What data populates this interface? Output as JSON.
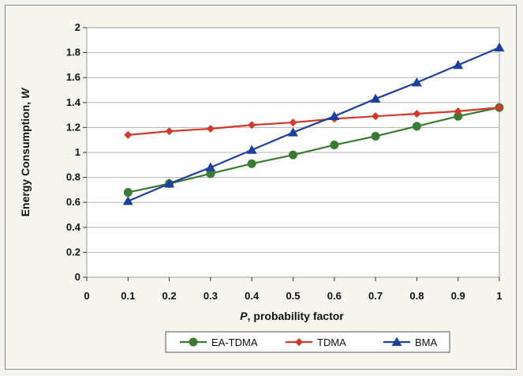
{
  "chart_data": {
    "type": "line",
    "x": [
      0.1,
      0.2,
      0.3,
      0.4,
      0.5,
      0.6,
      0.7,
      0.8,
      0.9,
      1
    ],
    "xticks": [
      "0",
      "0.1",
      "0.2",
      "0.3",
      "0.4",
      "0.5",
      "0.6",
      "0.7",
      "0.8",
      "0.9",
      "1"
    ],
    "yticks": [
      "0",
      "0.2",
      "0.4",
      "0.6",
      "0.8",
      "1",
      "1.2",
      "1.4",
      "1.6",
      "1.8",
      "2"
    ],
    "xlim": [
      0,
      1
    ],
    "ylim": [
      0,
      2
    ],
    "xlabel_italic": "P",
    "xlabel_rest": ", probability factor",
    "ylabel_main": "Energy Consumption, ",
    "ylabel_italic": "W",
    "grid": "horizontal",
    "legend_position": "bottom",
    "series": [
      {
        "name": "EA-TDMA",
        "color": "#3a7a32",
        "marker": "circle",
        "values": [
          0.68,
          0.75,
          0.83,
          0.91,
          0.98,
          1.06,
          1.13,
          1.21,
          1.29,
          1.36
        ]
      },
      {
        "name": "TDMA",
        "color": "#d13a2a",
        "marker": "diamond",
        "values": [
          1.14,
          1.17,
          1.19,
          1.22,
          1.24,
          1.27,
          1.29,
          1.31,
          1.33,
          1.36
        ]
      },
      {
        "name": "BMA",
        "color": "#1f3f9c",
        "marker": "triangle",
        "values": [
          0.61,
          0.75,
          0.88,
          1.02,
          1.16,
          1.29,
          1.43,
          1.56,
          1.7,
          1.84
        ]
      }
    ]
  }
}
